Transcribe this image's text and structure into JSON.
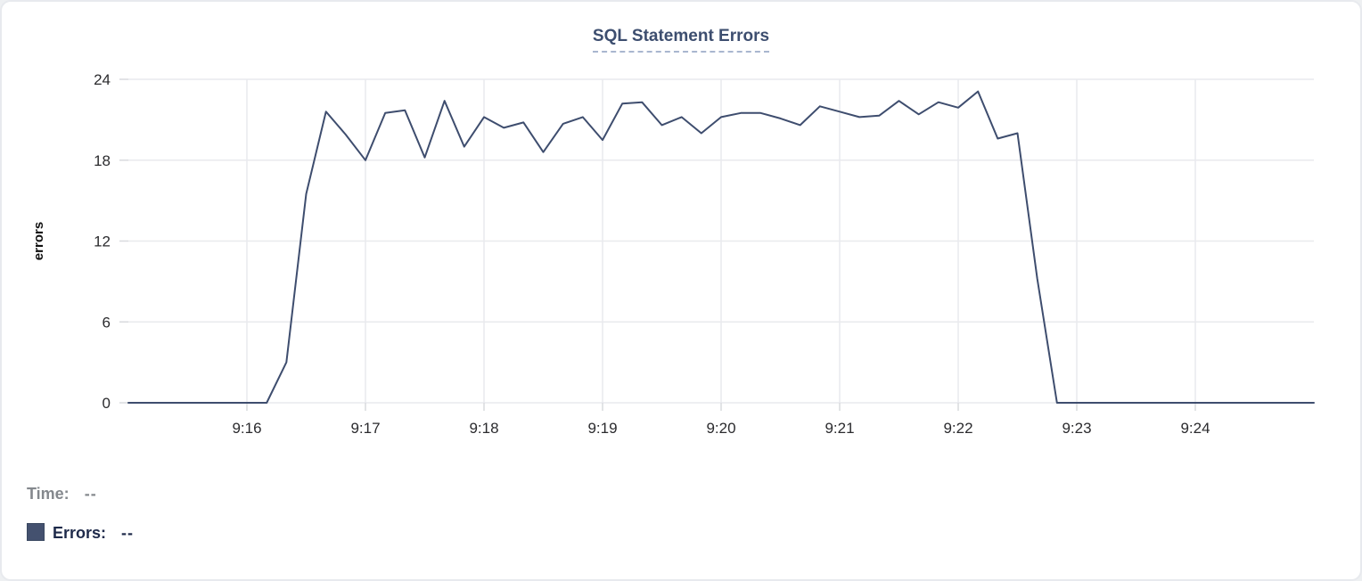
{
  "header": {
    "title": "SQL Statement Errors"
  },
  "tooltip_readout": {
    "time_label": "Time:",
    "time_value": "--",
    "errors_label": "Errors:",
    "errors_value": "--"
  },
  "colors": {
    "line": "#3e4d6e",
    "swatch": "#44516f",
    "title": "#3d4e6f",
    "grid": "#e9eaee",
    "tick": "#d8dade",
    "axis_text": "#2b2b2e"
  },
  "chart_data": {
    "type": "line",
    "title": "SQL Statement Errors",
    "xlabel": "",
    "ylabel": "errors",
    "ylim": [
      0,
      24
    ],
    "y_ticks": [
      0,
      6,
      12,
      18,
      24
    ],
    "x_tick_labels": [
      "9:16",
      "9:17",
      "9:18",
      "9:19",
      "9:20",
      "9:21",
      "9:22",
      "9:23",
      "9:24"
    ],
    "x_start": "9:15:00",
    "x_end": "9:25:00",
    "sample_interval_seconds": 10,
    "grid": "on",
    "legend_position": "bottom-left",
    "series": [
      {
        "name": "Errors",
        "start_time": "9:15:00",
        "values": [
          0,
          0,
          0,
          0,
          0,
          0,
          0,
          0,
          3,
          15.5,
          21.6,
          19.9,
          18,
          21.5,
          21.7,
          18.2,
          22.4,
          19,
          21.2,
          20.4,
          20.8,
          18.6,
          20.7,
          21.2,
          19.5,
          22.2,
          22.3,
          20.6,
          21.2,
          20,
          21.2,
          21.5,
          21.5,
          21.1,
          20.6,
          22,
          21.6,
          21.2,
          21.3,
          22.4,
          21.4,
          22.3,
          21.9,
          23.1,
          19.6,
          20,
          9.2,
          0,
          0,
          0,
          0,
          0,
          0,
          0,
          0,
          0,
          0,
          0,
          0,
          0,
          0
        ]
      }
    ]
  }
}
